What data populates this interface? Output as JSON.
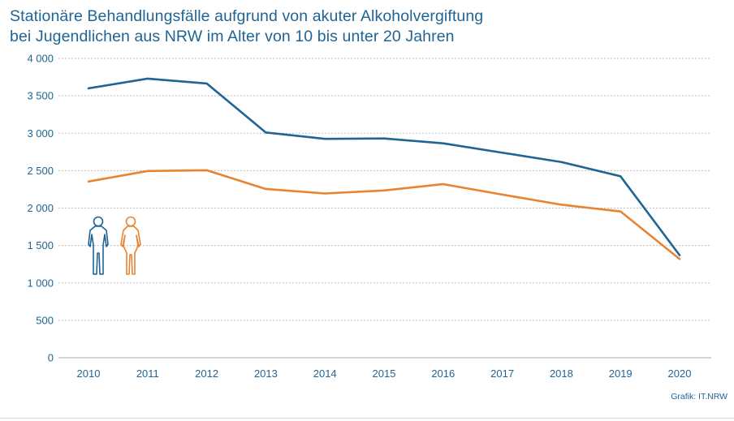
{
  "title_line1": "Stationäre Behandlungsfälle aufgrund von akuter Alkoholvergiftung",
  "title_line2": "bei Jugendlichen aus NRW im Alter von 10 bis unter 20 Jahren",
  "credit": "Grafik: IT.NRW",
  "chart_data": {
    "type": "line",
    "title": "Stationäre Behandlungsfälle aufgrund von akuter Alkoholvergiftung bei Jugendlichen aus NRW im Alter von 10 bis unter 20 Jahren",
    "xlabel": "",
    "ylabel": "",
    "categories": [
      "2010",
      "2011",
      "2012",
      "2013",
      "2014",
      "2015",
      "2016",
      "2017",
      "2018",
      "2019",
      "2020"
    ],
    "ylim": [
      0,
      4000
    ],
    "yticks": [
      0,
      500,
      1000,
      1500,
      2000,
      2500,
      3000,
      3500,
      4000
    ],
    "ytick_labels": [
      "0",
      "500",
      "1 000",
      "1 500",
      "2 000",
      "2 500",
      "3 000",
      "3 500",
      "4 000"
    ],
    "grid": true,
    "legend": "icons left (male figure blue, female figure orange)",
    "series": [
      {
        "color": "#1f6494",
        "icon": "male-figure-icon",
        "values": [
          3600,
          3730,
          3665,
          3010,
          2925,
          2930,
          2865,
          2740,
          2615,
          2425,
          1370
        ]
      },
      {
        "color": "#e8832f",
        "icon": "female-figure-icon",
        "values": [
          2355,
          2495,
          2505,
          2255,
          2195,
          2235,
          2320,
          2180,
          2045,
          1955,
          1320
        ]
      }
    ]
  }
}
